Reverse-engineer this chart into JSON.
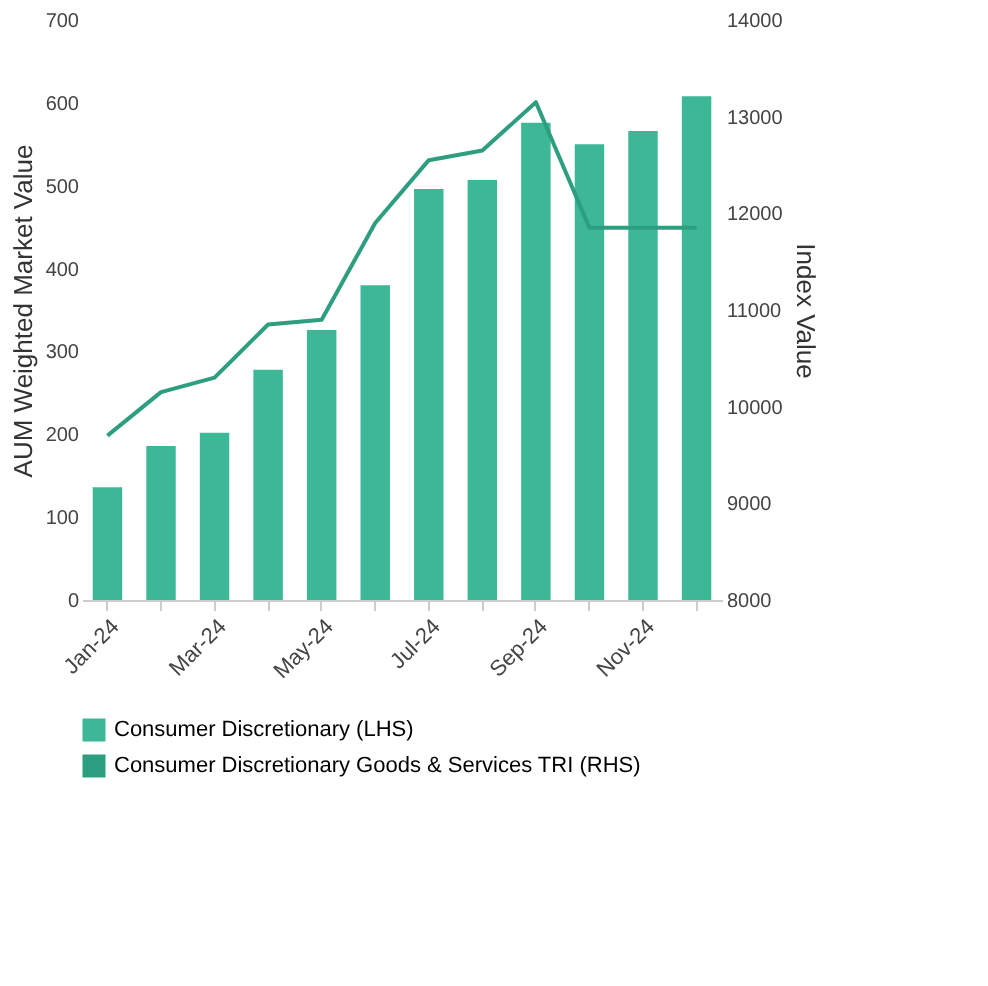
{
  "chart_data": {
    "type": "bar",
    "categories": [
      "Jan-24",
      null,
      "Mar-24",
      null,
      "May-24",
      null,
      "Jul-24",
      null,
      "Sep-24",
      null,
      "Nov-24",
      null
    ],
    "series": [
      {
        "name": "Consumer Discretionary (LHS)",
        "color": "#3cb896",
        "values": [
          136,
          186,
          202,
          278,
          326,
          380,
          496,
          507,
          576,
          550,
          566,
          608
        ]
      },
      {
        "name": "Consumer Discretionary Goods & Services TRI (RHS)",
        "type": "line",
        "axis": "y2",
        "color": "#2e9e80",
        "values": [
          9700,
          10150,
          10300,
          10850,
          10900,
          11900,
          12550,
          12650,
          13150,
          11850,
          11850,
          11850
        ]
      }
    ],
    "ylabel": "AUM Weighted Market Value",
    "y2label": "Index Value",
    "ylim": [
      0,
      700
    ],
    "yticks": [
      0,
      100,
      200,
      300,
      400,
      500,
      600,
      700
    ],
    "y2lim": [
      8000,
      14000
    ],
    "y2ticks": [
      8000,
      9000,
      10000,
      11000,
      12000,
      13000,
      14000
    ],
    "legend": "bottom",
    "grid": false
  }
}
